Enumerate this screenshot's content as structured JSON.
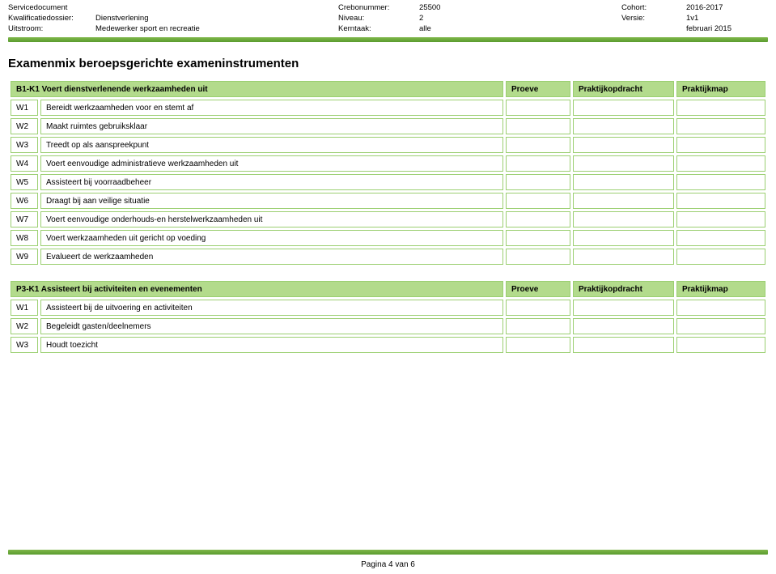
{
  "header": {
    "rows": [
      {
        "l1": "Servicedocument",
        "v1": "",
        "l2": "Crebonummer:",
        "v2": "25500",
        "l3": "Cohort:",
        "v3": "2016-2017"
      },
      {
        "l1": "Kwalificatiedossier:",
        "v1": "Dienstverlening",
        "l2": "Niveau:",
        "v2": "2",
        "l3": "Versie:",
        "v3": "1v1"
      },
      {
        "l1": "Uitstroom:",
        "v1": "Medewerker sport en recreatie",
        "l2": "Kerntaak:",
        "v2": "alle",
        "l3": "",
        "v3": "februari 2015"
      }
    ]
  },
  "title": "Examenmix beroepsgerichte exameninstrumenten",
  "columns": {
    "p1": "Proeve",
    "p2": "Praktijkopdracht",
    "p3": "Praktijkmap"
  },
  "section1": {
    "heading": "B1-K1 Voert dienstverlenende werkzaamheden uit",
    "rows": [
      {
        "code": "W1",
        "desc": "Bereidt werkzaamheden voor en stemt af"
      },
      {
        "code": "W2",
        "desc": "Maakt ruimtes gebruiksklaar"
      },
      {
        "code": "W3",
        "desc": "Treedt op als aanspreekpunt"
      },
      {
        "code": "W4",
        "desc": "Voert eenvoudige administratieve werkzaamheden uit"
      },
      {
        "code": "W5",
        "desc": "Assisteert bij voorraadbeheer"
      },
      {
        "code": "W6",
        "desc": "Draagt bij aan veilige situatie"
      },
      {
        "code": "W7",
        "desc": "Voert eenvoudige onderhouds-en herstelwerkzaamheden uit"
      },
      {
        "code": "W8",
        "desc": "Voert werkzaamheden uit gericht op voeding"
      },
      {
        "code": "W9",
        "desc": "Evalueert de werkzaamheden"
      }
    ]
  },
  "section2": {
    "heading": "P3-K1 Assisteert bij activiteiten en evenementen",
    "rows": [
      {
        "code": "W1",
        "desc": "Assisteert bij de uitvoering en activiteiten"
      },
      {
        "code": "W2",
        "desc": "Begeleidt gasten/deelnemers"
      },
      {
        "code": "W3",
        "desc": "Houdt toezicht"
      }
    ]
  },
  "footer": "Pagina 4 van 6"
}
